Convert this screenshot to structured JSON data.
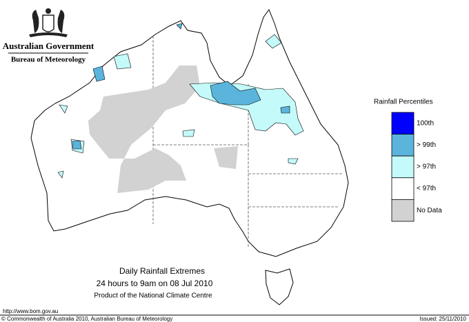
{
  "header": {
    "organization": "Australian Government",
    "agency": "Bureau of Meteorology"
  },
  "legend": {
    "title": "Rainfall Percentiles",
    "items": [
      {
        "label": "100th",
        "color": "#0000ff"
      },
      {
        "label": "> 99th",
        "color": "#5ab4dc"
      },
      {
        "label": "> 97th",
        "color": "#c4fafa"
      },
      {
        "label": "< 97th",
        "color": "#ffffff"
      },
      {
        "label": "No Data",
        "color": "#d2d2d2"
      }
    ]
  },
  "caption": {
    "title": "Daily Rainfall Extremes",
    "period": "24 hours to 9am on 08 Jul 2010",
    "product": "Product of the National Climate Centre"
  },
  "footer": {
    "url": "http://www.bom.gov.au",
    "copyright": "© Commonwealth of Australia 2010, Australian Bureau of Meteorology",
    "issued": "Issued: 25/11/2010"
  }
}
